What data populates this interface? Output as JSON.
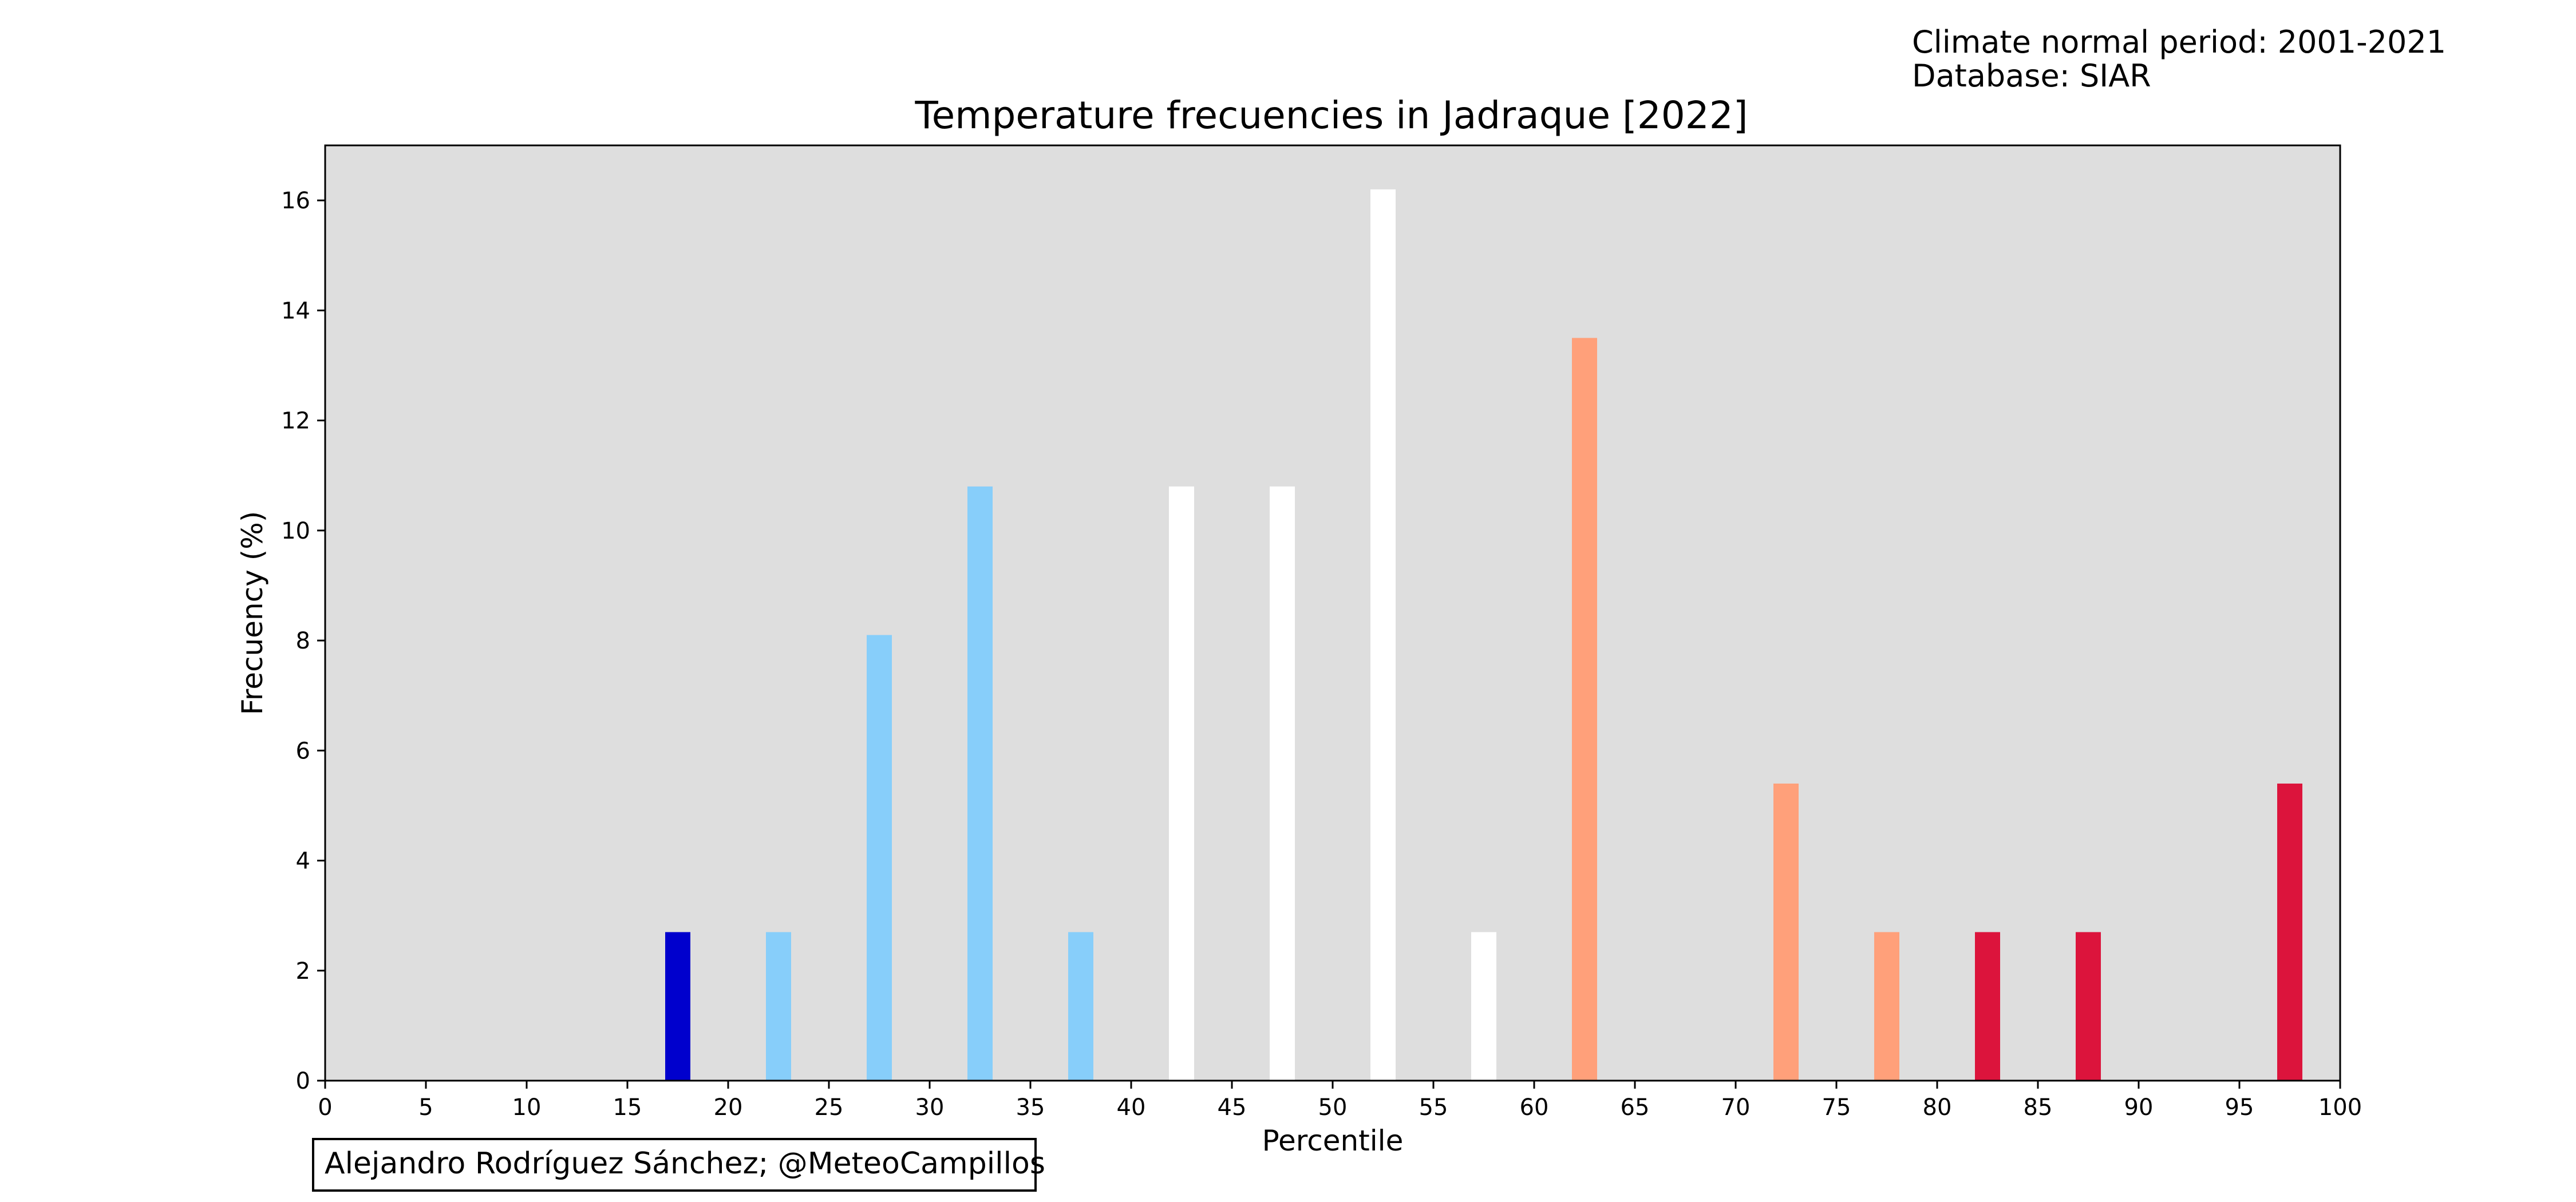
{
  "header": {
    "line1": "Climate normal period: 2001-2021",
    "line2": "Database: SIAR"
  },
  "credit": "Alejandro Rodríguez Sánchez; @MeteoCampillos",
  "colors": {
    "plot_background": "#dedede",
    "very_cold": "#0000cd",
    "cold": "#87cefa",
    "normal": "#ffffff",
    "warm": "#ffa07a",
    "very_warm": "#dc143c"
  },
  "chart_data": {
    "type": "bar",
    "title": "Temperature frecuencies in Jadraque [2022]",
    "xlabel": "Percentile",
    "ylabel": "Frecuency (%)",
    "xlim": [
      0,
      100
    ],
    "ylim": [
      0,
      17
    ],
    "x_ticks": [
      "0",
      "5",
      "10",
      "15",
      "20",
      "25",
      "30",
      "35",
      "40",
      "45",
      "50",
      "55",
      "60",
      "65",
      "70",
      "75",
      "80",
      "85",
      "90",
      "95",
      "100"
    ],
    "y_ticks": [
      "0",
      "2",
      "4",
      "6",
      "8",
      "10",
      "12",
      "14",
      "16"
    ],
    "grid": false,
    "bars": [
      {
        "x": 17.5,
        "value": 2.7,
        "color": "#0000cd"
      },
      {
        "x": 22.5,
        "value": 2.7,
        "color": "#87cefa"
      },
      {
        "x": 27.5,
        "value": 8.1,
        "color": "#87cefa"
      },
      {
        "x": 32.5,
        "value": 10.8,
        "color": "#87cefa"
      },
      {
        "x": 37.5,
        "value": 2.7,
        "color": "#87cefa"
      },
      {
        "x": 42.5,
        "value": 10.8,
        "color": "#ffffff"
      },
      {
        "x": 47.5,
        "value": 10.8,
        "color": "#ffffff"
      },
      {
        "x": 52.5,
        "value": 16.2,
        "color": "#ffffff"
      },
      {
        "x": 57.5,
        "value": 2.7,
        "color": "#ffffff"
      },
      {
        "x": 62.5,
        "value": 13.5,
        "color": "#ffa07a"
      },
      {
        "x": 72.5,
        "value": 5.4,
        "color": "#ffa07a"
      },
      {
        "x": 77.5,
        "value": 2.7,
        "color": "#ffa07a"
      },
      {
        "x": 82.5,
        "value": 2.7,
        "color": "#dc143c"
      },
      {
        "x": 87.5,
        "value": 2.7,
        "color": "#dc143c"
      },
      {
        "x": 97.5,
        "value": 5.4,
        "color": "#dc143c"
      }
    ]
  }
}
